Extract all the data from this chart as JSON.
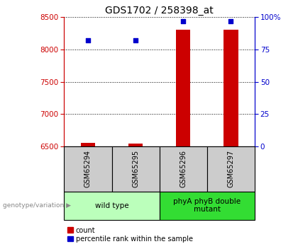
{
  "title": "GDS1702 / 258398_at",
  "samples": [
    "GSM65294",
    "GSM65295",
    "GSM65296",
    "GSM65297"
  ],
  "count_values": [
    6560,
    6545,
    8310,
    8310
  ],
  "percentile_values": [
    82,
    82,
    97,
    97
  ],
  "ylim_left": [
    6500,
    8500
  ],
  "ylim_right": [
    0,
    100
  ],
  "yticks_left": [
    6500,
    7000,
    7500,
    8000,
    8500
  ],
  "yticks_right": [
    0,
    25,
    50,
    75,
    100
  ],
  "bar_color": "#cc0000",
  "dot_color": "#0000cc",
  "bar_width": 0.3,
  "groups": [
    {
      "label": "wild type",
      "samples": [
        0,
        1
      ],
      "color": "#bbffbb"
    },
    {
      "label": "phyA phyB double\nmutant",
      "samples": [
        2,
        3
      ],
      "color": "#33dd33"
    }
  ],
  "group_label_prefix": "genotype/variation",
  "legend_count_label": "count",
  "legend_percentile_label": "percentile rank within the sample",
  "axis_left_color": "#cc0000",
  "axis_right_color": "#0000cc",
  "background_sample_box": "#cccccc",
  "title_fontsize": 10
}
